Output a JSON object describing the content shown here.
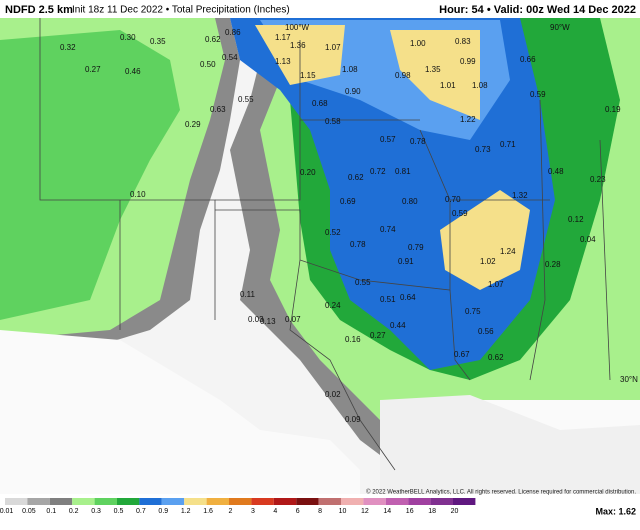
{
  "header": {
    "title": "NDFD 2.5 km",
    "subtitle": "Init 18z 11 Dec 2022 • Total Precipitation (Inches)",
    "valid": "Hour: 54 • Valid: 00z Wed 14 Dec 2022"
  },
  "map": {
    "grid_labels": [
      "100°W",
      "90°W",
      "30°N"
    ],
    "labels": [
      "0.32",
      "0.30",
      "0.35",
      "0.27",
      "0.46",
      "0.62",
      "0.86",
      "1.17",
      "1.36",
      "1.07",
      "1.13",
      "1.15",
      "1.08",
      "1.00",
      "0.83",
      "0.99",
      "1.35",
      "1.01",
      "1.08",
      "0.90",
      "0.98",
      "1.22",
      "0.66",
      "0.59",
      "0.50",
      "0.54",
      "0.63",
      "0.55",
      "0.58",
      "0.68",
      "0.72",
      "0.57",
      "0.78",
      "0.81",
      "0.73",
      "0.71",
      "0.62",
      "0.69",
      "0.80",
      "0.70",
      "1.32",
      "0.59",
      "0.52",
      "0.78",
      "0.74",
      "0.79",
      "0.91",
      "1.02",
      "1.24",
      "1.07",
      "0.55",
      "0.51",
      "0.64",
      "0.44",
      "0.75",
      "0.56",
      "0.67",
      "0.62",
      "0.24",
      "0.27",
      "0.13",
      "0.29",
      "0.20",
      "0.16",
      "0.11",
      "0.10",
      "0.07",
      "0.03",
      "0.48",
      "0.12",
      "0.28",
      "0.23",
      "0.19",
      "0.02",
      "0.09",
      "0.04"
    ]
  },
  "legend": {
    "values": [
      0.01,
      0.05,
      0.1,
      0.2,
      0.3,
      0.5,
      0.7,
      0.9,
      1.2,
      1.6,
      2,
      3,
      4,
      6,
      8,
      10,
      12,
      14,
      16,
      18,
      20
    ],
    "colors": [
      "#d9d9d9",
      "#a6a6a6",
      "#7f7f7f",
      "#a8f08c",
      "#5fd25f",
      "#22a83a",
      "#1f6fd6",
      "#5aa0f0",
      "#f5e08a",
      "#f0b040",
      "#e07a1e",
      "#d83a20",
      "#b01818",
      "#7a1010",
      "#c07070",
      "#f0b0b0",
      "#e090c0",
      "#c060b0",
      "#a040a0",
      "#803090",
      "#601880"
    ]
  },
  "footer": {
    "copyright": "© 2022 WeatherBELL Analytics, LLC. All rights reserved. License required for commercial distribution.",
    "max": "Max: 1.62"
  }
}
